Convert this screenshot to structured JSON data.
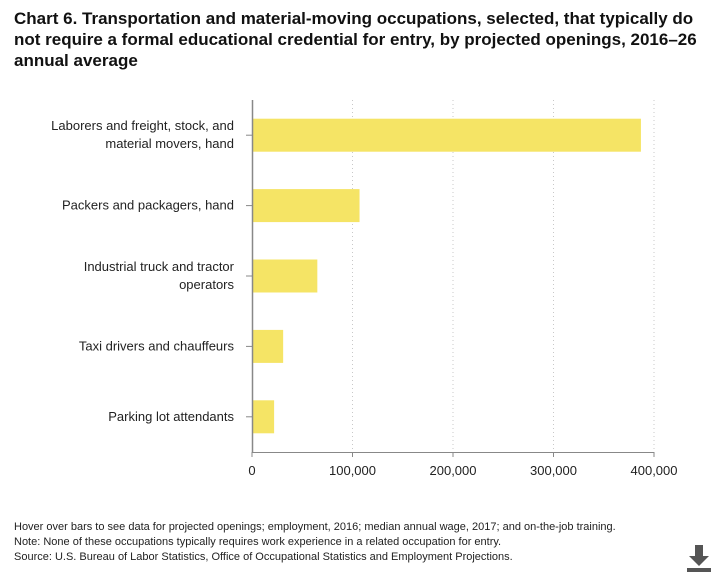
{
  "chart_data": {
    "type": "bar",
    "orientation": "horizontal",
    "title": "Chart 6. Transportation and material-moving occupations, selected, that typically do not require a formal educational credential for entry, by projected openings, 2016–26 annual average",
    "categories": [
      [
        "Laborers and freight, stock, and",
        "material movers, hand"
      ],
      [
        "Packers and packagers, hand"
      ],
      [
        "Industrial truck and tractor",
        "operators"
      ],
      [
        "Taxi drivers and chauffeurs"
      ],
      [
        "Parking lot attendants"
      ]
    ],
    "series": [
      {
        "name": "Projected openings",
        "values": [
          387000,
          107000,
          65000,
          31000,
          22000
        ]
      }
    ],
    "xlim": [
      0,
      400000
    ],
    "xticks": [
      0,
      100000,
      200000,
      300000,
      400000
    ],
    "xtick_labels": [
      "0",
      "100,000",
      "200,000",
      "300,000",
      "400,000"
    ],
    "xlabel": "",
    "ylabel": "",
    "grid": "vertical dotted",
    "bar_color": "#f5e465"
  },
  "notes": {
    "hover": "Hover over bars to see data for projected openings; employment, 2016; median annual wage, 2017; and on-the-job training.",
    "note": "Note: None of these occupations typically requires work experience in a related occupation for entry.",
    "source": "Source: U.S. Bureau of Labor Statistics, Office of Occupational Statistics and Employment Projections."
  },
  "download": {
    "icon": "download-icon"
  }
}
